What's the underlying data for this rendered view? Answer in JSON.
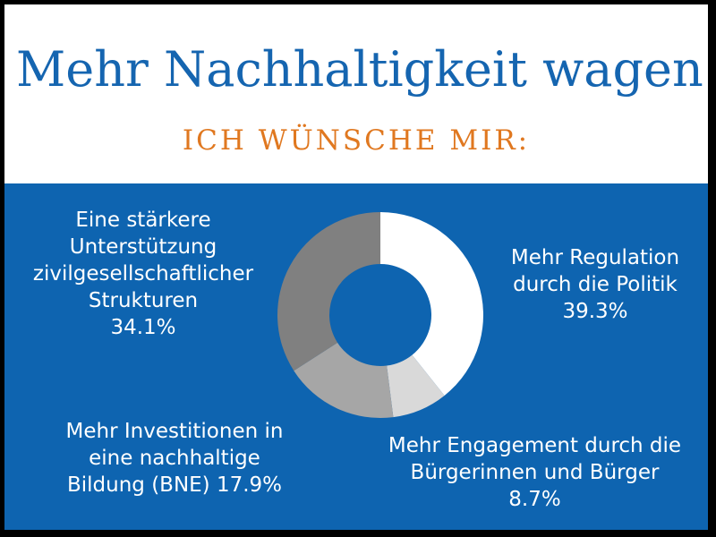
{
  "header": {
    "title": "Mehr Nachhaltigkeit wagen!",
    "subtitle": "ICH WÜNSCHE MIR:"
  },
  "colors": {
    "title": "#1565b0",
    "subtitle": "#e07820",
    "panel": "#0e64b0",
    "label": "#ffffff"
  },
  "chart_data": {
    "type": "pie",
    "variant": "donut",
    "title": "",
    "categories": [
      "Mehr Regulation durch die Politik",
      "Mehr Engagement durch die Bürgerinnen und Bürger",
      "Mehr Investitionen in eine nachhaltige Bildung (BNE)",
      "Eine stärkere Unterstützung zivilgesellschaftlicher Strukturen"
    ],
    "values": [
      39.3,
      8.7,
      17.9,
      34.1
    ],
    "value_labels": [
      "39.3%",
      "8.7%",
      "17.9%",
      "34.1%"
    ],
    "colors": [
      "#ffffff",
      "#d9d9d9",
      "#a6a6a6",
      "#808080"
    ],
    "labels": [
      {
        "lines": [
          "Mehr Regulation",
          "durch die Politik",
          "39.3%"
        ]
      },
      {
        "lines": [
          "Mehr Engagement durch die",
          "Bürgerinnen und Bürger",
          "8.7%"
        ]
      },
      {
        "lines": [
          "Mehr Investitionen in",
          "eine nachhaltige",
          "Bildung (BNE) 17.9%"
        ]
      },
      {
        "lines": [
          "Eine stärkere",
          "Unterstützung",
          "zivilgesellschaftlicher",
          "Strukturen",
          "34.1%"
        ]
      }
    ],
    "legend": "none",
    "grid": false
  }
}
